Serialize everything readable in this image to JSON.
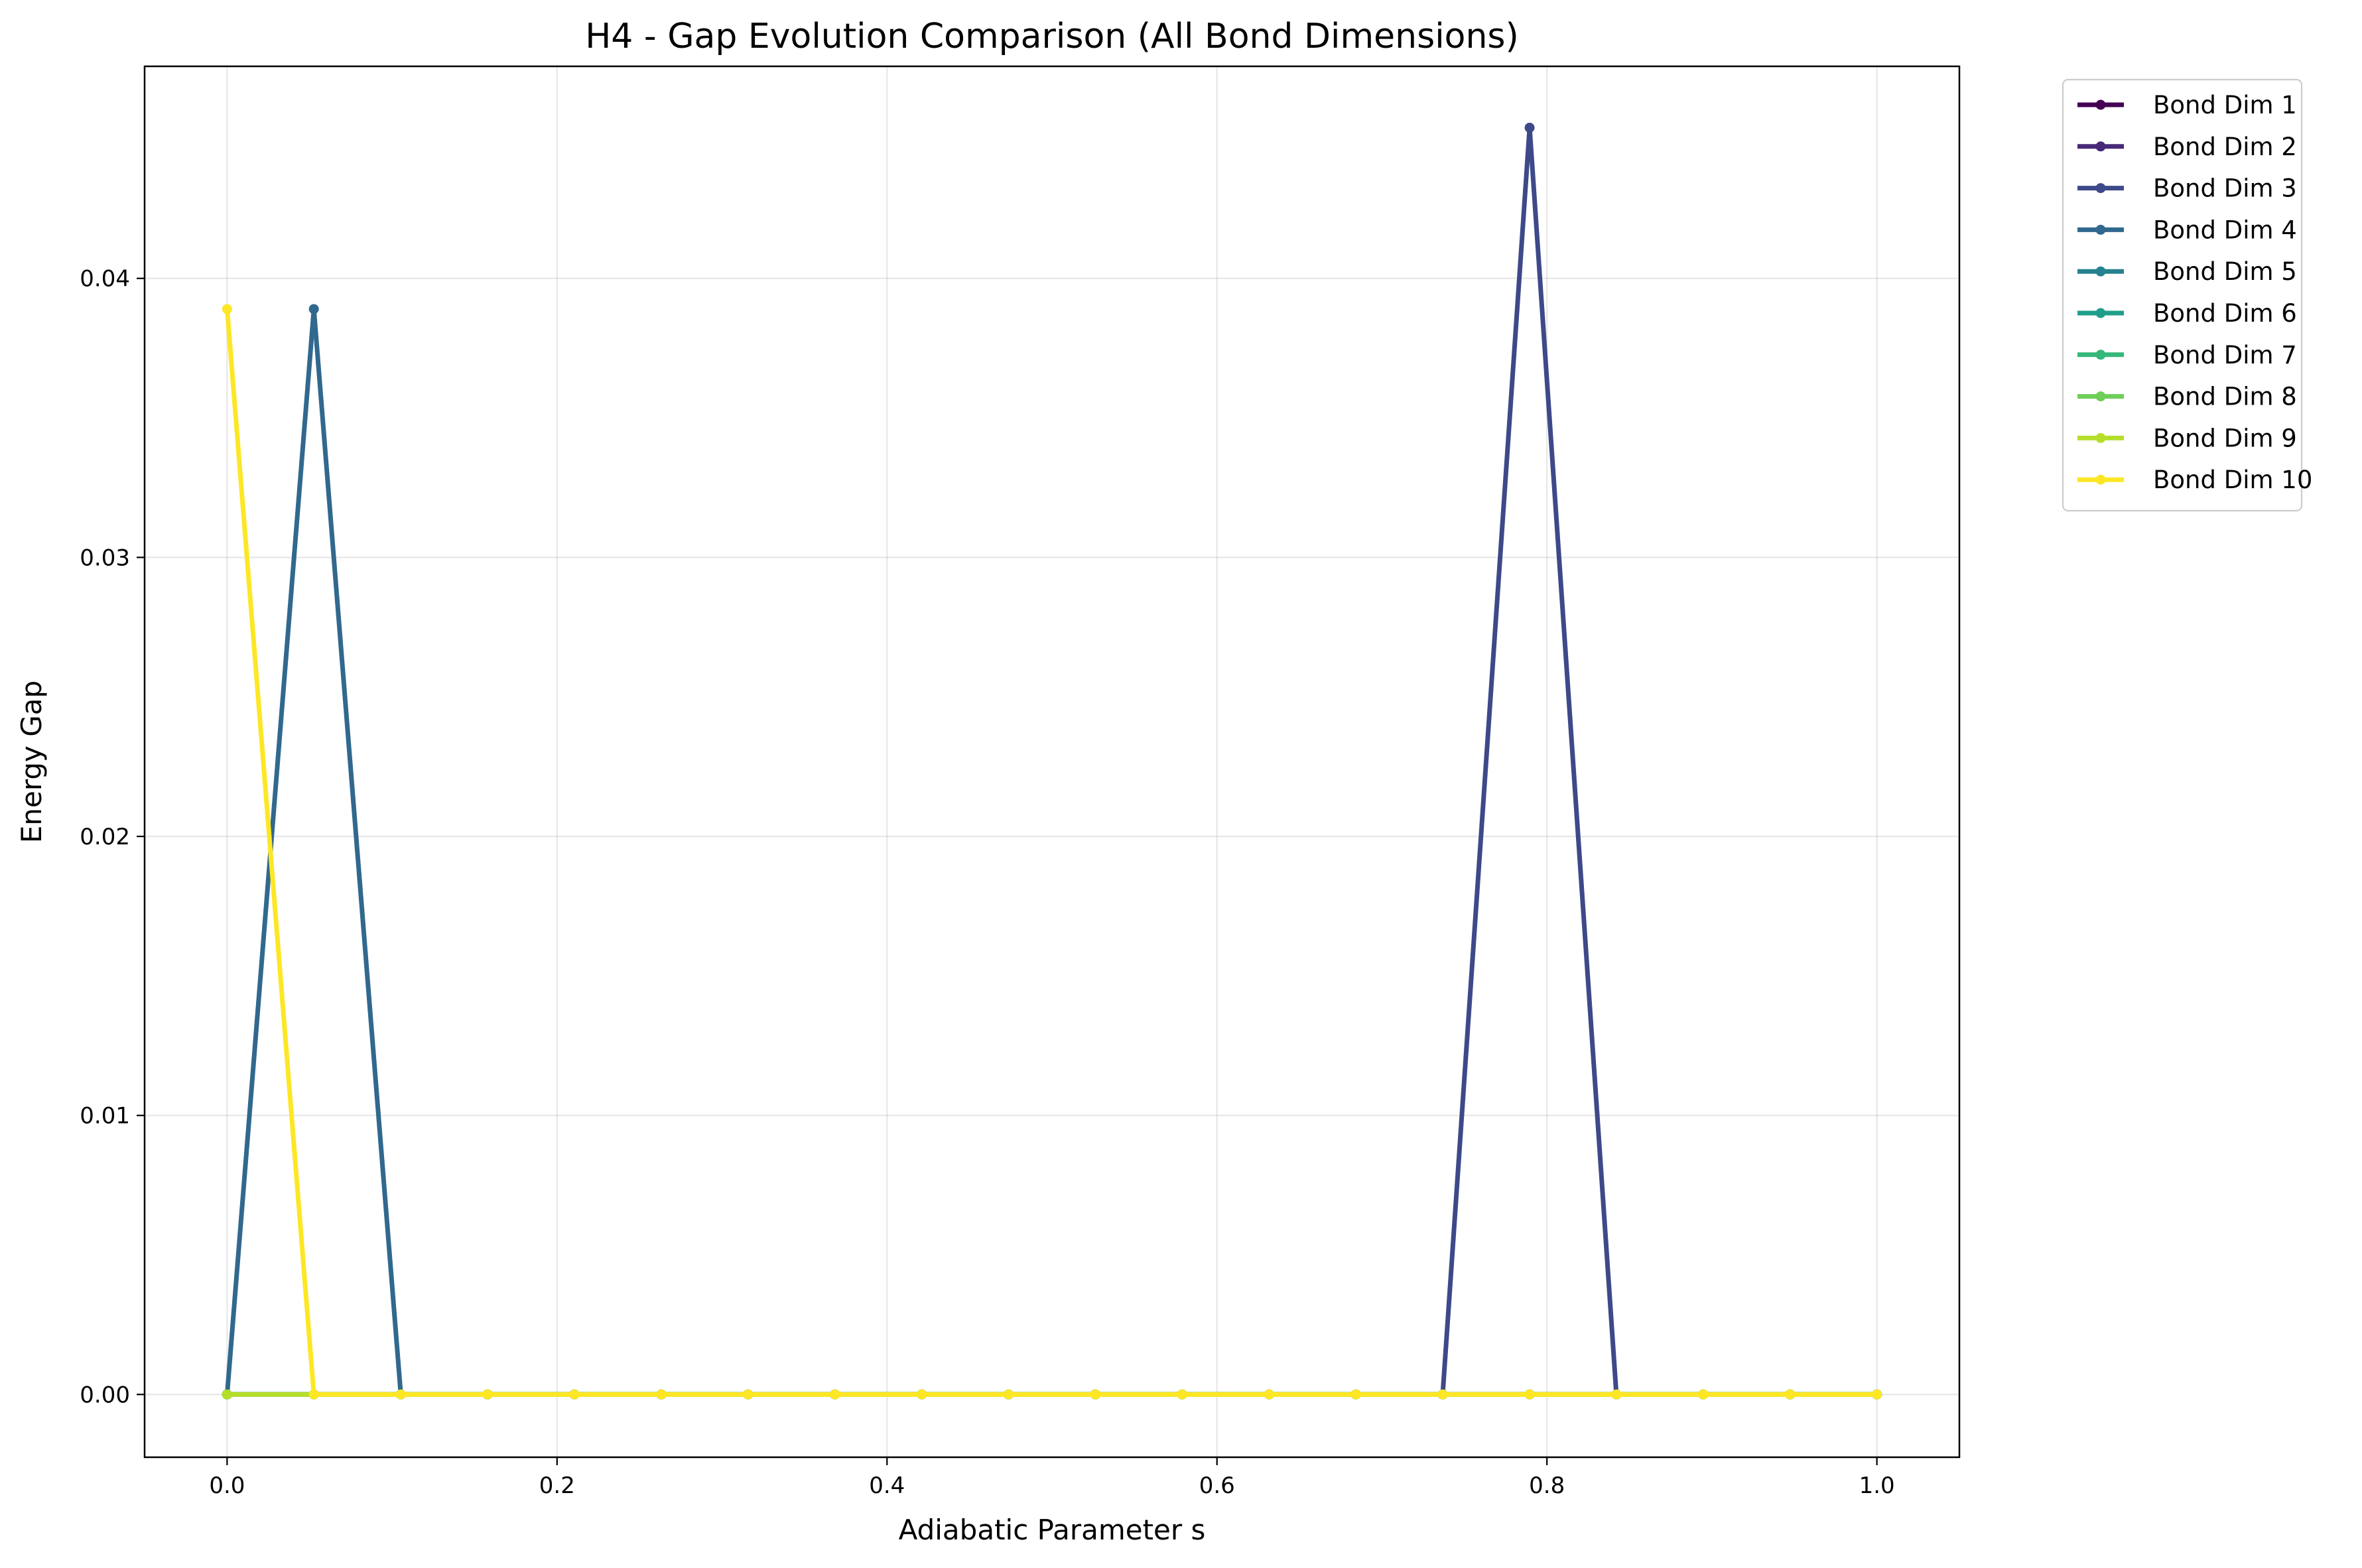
{
  "chart_data": {
    "type": "line",
    "title": "H4 - Gap Evolution Comparison (All Bond Dimensions)",
    "xlabel": "Adiabatic Parameter s",
    "ylabel": "Energy Gap",
    "xlim": [
      -0.05,
      1.05
    ],
    "ylim": [
      -0.00225,
      0.0476
    ],
    "xticks": [
      0.0,
      0.2,
      0.4,
      0.6,
      0.8,
      1.0
    ],
    "xtick_labels": [
      "0.0",
      "0.2",
      "0.4",
      "0.6",
      "0.8",
      "1.0"
    ],
    "yticks": [
      0.0,
      0.01,
      0.02,
      0.03,
      0.04
    ],
    "ytick_labels": [
      "0.00",
      "0.01",
      "0.02",
      "0.03",
      "0.04"
    ],
    "grid": true,
    "legend_position": "outside-top-right",
    "x": [
      0.0,
      0.0526,
      0.1053,
      0.1579,
      0.2105,
      0.2632,
      0.3158,
      0.3684,
      0.4211,
      0.4737,
      0.5263,
      0.5789,
      0.6316,
      0.6842,
      0.7368,
      0.7895,
      0.8421,
      0.8947,
      0.9474,
      1.0
    ],
    "series": [
      {
        "name": "Bond Dim 1",
        "color": "#440154",
        "values": [
          0,
          0,
          0,
          0,
          0,
          0,
          0,
          0,
          0,
          0,
          0,
          0,
          0,
          0,
          0,
          0,
          0,
          0,
          0,
          0
        ]
      },
      {
        "name": "Bond Dim 2",
        "color": "#482878",
        "values": [
          0,
          0,
          0,
          0,
          0,
          0,
          0,
          0,
          0,
          0,
          0,
          0,
          0,
          0,
          0,
          0,
          0,
          0,
          0,
          0
        ]
      },
      {
        "name": "Bond Dim 3",
        "color": "#3e4989",
        "values": [
          0,
          0,
          0,
          0,
          0,
          0,
          0,
          0,
          0,
          0,
          0,
          0,
          0,
          0,
          0,
          0.0454,
          0,
          0,
          0,
          0
        ]
      },
      {
        "name": "Bond Dim 4",
        "color": "#31688e",
        "values": [
          0,
          0.0389,
          0,
          0,
          0,
          0,
          0,
          0,
          0,
          0,
          0,
          0,
          0,
          0,
          0,
          0,
          0,
          0,
          0,
          0
        ]
      },
      {
        "name": "Bond Dim 5",
        "color": "#26828e",
        "values": [
          0,
          0,
          0,
          0,
          0,
          0,
          0,
          0,
          0,
          0,
          0,
          0,
          0,
          0,
          0,
          0,
          0,
          0,
          0,
          0
        ]
      },
      {
        "name": "Bond Dim 6",
        "color": "#1f9e89",
        "values": [
          0,
          0,
          0,
          0,
          0,
          0,
          0,
          0,
          0,
          0,
          0,
          0,
          0,
          0,
          0,
          0,
          0,
          0,
          0,
          0
        ]
      },
      {
        "name": "Bond Dim 7",
        "color": "#35b779",
        "values": [
          0,
          0,
          0,
          0,
          0,
          0,
          0,
          0,
          0,
          0,
          0,
          0,
          0,
          0,
          0,
          0,
          0,
          0,
          0,
          0
        ]
      },
      {
        "name": "Bond Dim 8",
        "color": "#6ece58",
        "values": [
          0,
          0,
          0,
          0,
          0,
          0,
          0,
          0,
          0,
          0,
          0,
          0,
          0,
          0,
          0,
          0,
          0,
          0,
          0,
          0
        ]
      },
      {
        "name": "Bond Dim 9",
        "color": "#b5de2b",
        "values": [
          0,
          0,
          0,
          0,
          0,
          0,
          0,
          0,
          0,
          0,
          0,
          0,
          0,
          0,
          0,
          0,
          0,
          0,
          0,
          0
        ]
      },
      {
        "name": "Bond Dim 10",
        "color": "#fde725",
        "values": [
          0.0389,
          0,
          0,
          0,
          0,
          0,
          0,
          0,
          0,
          0,
          0,
          0,
          0,
          0,
          0,
          0,
          0,
          0,
          0,
          0
        ]
      }
    ]
  }
}
